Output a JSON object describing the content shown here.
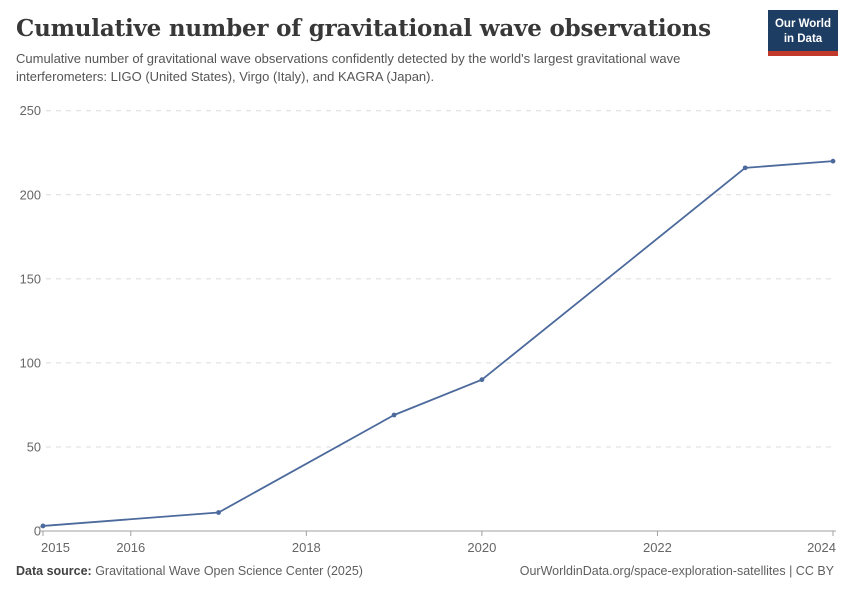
{
  "header": {
    "title": "Cumulative number of gravitational wave observations",
    "subtitle": "Cumulative number of gravitational wave observations confidently detected by the world's largest gravitational wave interferometers: LIGO (United States), Virgo (Italy), and KAGRA (Japan).",
    "logo": {
      "line1": "Our World",
      "line2": "in Data",
      "bg_color": "#1d3d63",
      "accent_color": "#c0392b"
    }
  },
  "chart_data": {
    "type": "line",
    "title": "Cumulative number of gravitational wave observations",
    "xlabel": "",
    "ylabel": "",
    "x": [
      2015,
      2017,
      2019,
      2020,
      2023,
      2024
    ],
    "series": [
      {
        "name": "Cumulative gravitational wave observations",
        "values": [
          3,
          11,
          69,
          90,
          216,
          220
        ],
        "color": "#4c6a9c"
      }
    ],
    "xlim": [
      2015,
      2024
    ],
    "ylim": [
      0,
      250
    ],
    "yticks": [
      0,
      50,
      100,
      150,
      200,
      250
    ],
    "xticks": [
      2015,
      2016,
      2018,
      2020,
      2022,
      2024
    ],
    "grid": "horizontal-dashed",
    "gridline_color": "#dcdcdc",
    "axis_color": "#a0a0a0",
    "tick_label_color": "#666666",
    "legend": "none",
    "markers": true
  },
  "footer": {
    "source_label": "Data source:",
    "source_text": " Gravitational Wave Open Science Center (2025)",
    "attribution": "OurWorldinData.org/space-exploration-satellites | CC BY"
  }
}
